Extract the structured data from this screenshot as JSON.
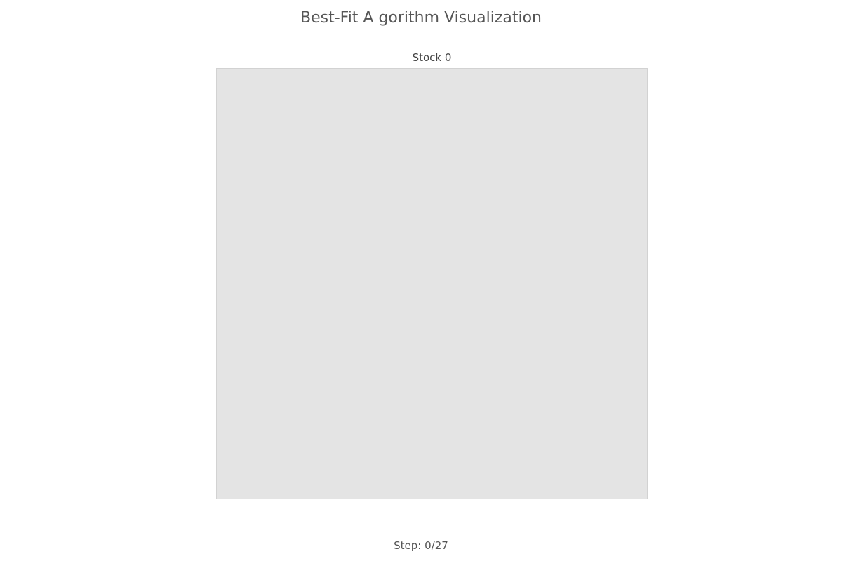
{
  "page": {
    "title": "Best-Fit A gorithm Visualization"
  },
  "stock": {
    "label": "Stock 0",
    "background_color": "#e4e4e4",
    "pieces": []
  },
  "status": {
    "step_text": "Step: 0/27",
    "current_step": 0,
    "total_steps": 27
  }
}
